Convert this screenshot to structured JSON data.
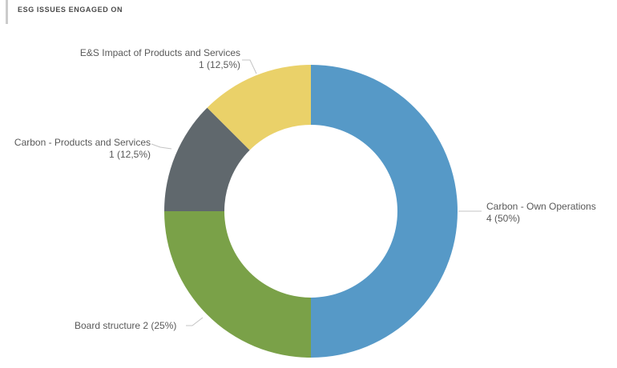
{
  "header": {
    "title": "ESG ISSUES ENGAGED ON"
  },
  "chart_data": {
    "type": "pie",
    "subtype": "donut",
    "title": "ESG ISSUES ENGAGED ON",
    "start_angle_deg": 0,
    "direction": "clockwise",
    "inner_radius_ratio": 0.59,
    "total": 8,
    "slices": [
      {
        "name": "Carbon - Own Operations",
        "value": 4,
        "percent": 50,
        "display_value": "4 (50%)",
        "color": "#5699c7"
      },
      {
        "name": "Board structure",
        "value": 2,
        "percent": 25,
        "display_label": "Board structure 2 (25%)",
        "color": "#7aa148"
      },
      {
        "name": "Carbon - Products and Services",
        "value": 1,
        "percent": 12.5,
        "display_value": "1 (12,5%)",
        "color": "#60686d"
      },
      {
        "name": "E&S Impact of Products and Services",
        "value": 1,
        "percent": 12.5,
        "display_value": "1 (12,5%)",
        "color": "#ead169"
      }
    ],
    "leader_line_color": "#c4c4c4"
  }
}
